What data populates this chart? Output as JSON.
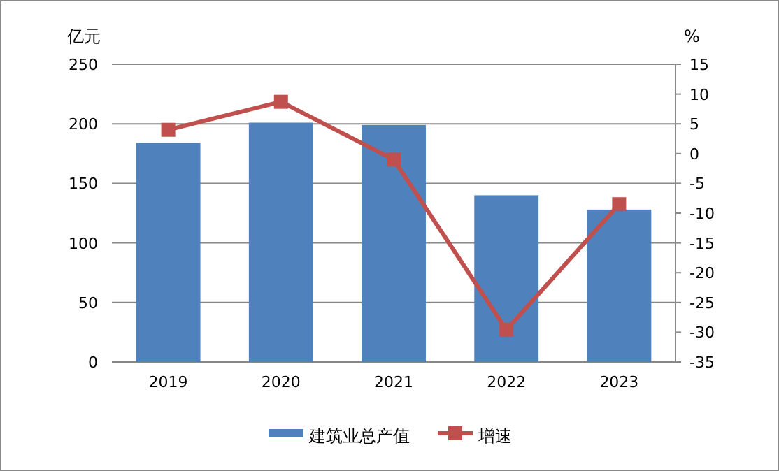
{
  "chart_data": {
    "type": "bar",
    "ylabel": "亿元",
    "y2label": "%",
    "categories": [
      "2019",
      "2020",
      "2021",
      "2022",
      "2023"
    ],
    "series": [
      {
        "name": "建筑业总产值",
        "color": "#4f81bd",
        "values": [
          184,
          201,
          199,
          140,
          128
        ]
      },
      {
        "name": "增速",
        "type": "line",
        "axis": "y2",
        "color": "#c0504d",
        "marker": "square",
        "values": [
          4.0,
          8.7,
          -1.0,
          -29.6,
          -8.5
        ]
      }
    ],
    "ylim": [
      0,
      250
    ],
    "yticks": [
      0,
      50,
      100,
      150,
      200,
      250
    ],
    "y2lim": [
      -35,
      15
    ],
    "y2ticks": [
      -35,
      -30,
      -25,
      -20,
      -15,
      -10,
      -5,
      0,
      5,
      10,
      15
    ],
    "grid": "y",
    "legend": "bottom"
  }
}
